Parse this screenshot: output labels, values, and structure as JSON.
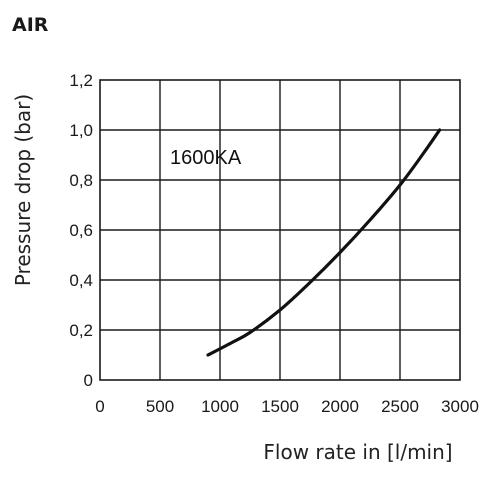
{
  "header": {
    "title": "AIR"
  },
  "chart_data": {
    "type": "line",
    "xlabel": "Flow rate in [l/min]",
    "ylabel": "Pressure drop (bar)",
    "xlim": [
      0,
      3000
    ],
    "ylim": [
      0,
      1.2
    ],
    "x_ticks": [
      0,
      500,
      1000,
      1500,
      2000,
      2500,
      3000
    ],
    "x_tick_labels": [
      "0",
      "500",
      "1000",
      "1500",
      "2000",
      "2500",
      "3000"
    ],
    "y_ticks": [
      0,
      0.2,
      0.4,
      0.6,
      0.8,
      1.0,
      1.2
    ],
    "y_tick_labels": [
      "0",
      "0,2",
      "0,4",
      "0,6",
      "0,8",
      "1,0",
      "1,2"
    ],
    "grid": true,
    "annotation": "1600KA",
    "series": [
      {
        "name": "1600KA",
        "color": "#111111",
        "points": [
          [
            900,
            0.1
          ],
          [
            1100,
            0.15
          ],
          [
            1250,
            0.19
          ],
          [
            1500,
            0.28
          ],
          [
            1750,
            0.39
          ],
          [
            2000,
            0.51
          ],
          [
            2250,
            0.64
          ],
          [
            2500,
            0.78
          ],
          [
            2700,
            0.91
          ],
          [
            2830,
            1.0
          ]
        ]
      }
    ]
  }
}
